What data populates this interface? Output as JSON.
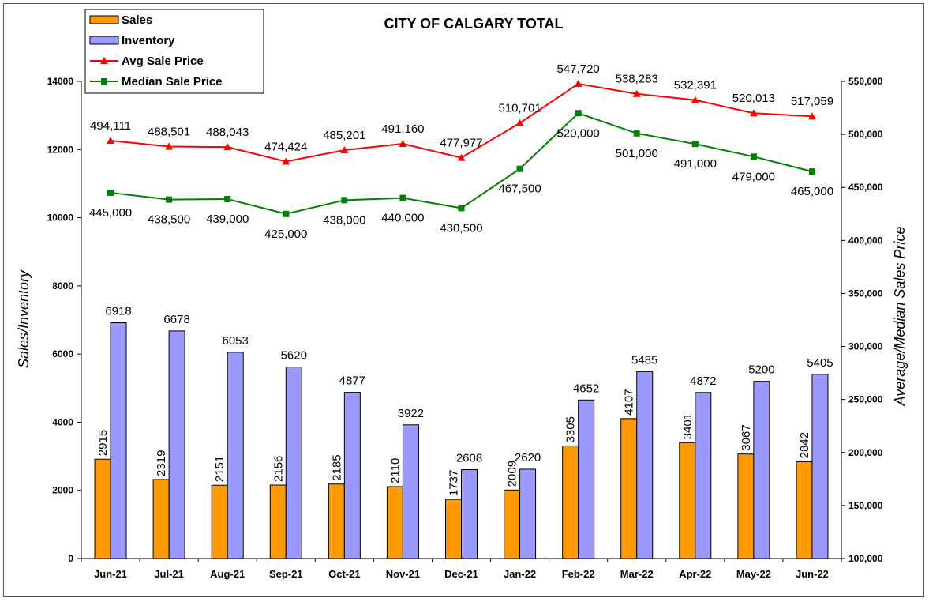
{
  "chart_data": {
    "type": "bar",
    "title": "CITY OF CALGARY TOTAL",
    "ylabel_left": "Sales/Inventory",
    "ylabel_right": "Average/Median Sales Price",
    "ylim_left": [
      0,
      14000
    ],
    "yticks_left": [
      "0",
      "2000",
      "4000",
      "6000",
      "8000",
      "10000",
      "12000",
      "14000"
    ],
    "ylim_right": [
      100000,
      550000
    ],
    "yticks_right": [
      "100,000",
      "150,000",
      "200,000",
      "250,000",
      "300,000",
      "350,000",
      "400,000",
      "450,000",
      "500,000",
      "550,000"
    ],
    "legend_position": "top-left",
    "grid": false,
    "categories": [
      "Jun-21",
      "Jul-21",
      "Aug-21",
      "Sep-21",
      "Oct-21",
      "Nov-21",
      "Dec-21",
      "Jan-22",
      "Feb-22",
      "Mar-22",
      "Apr-22",
      "May-22",
      "Jun-22"
    ],
    "series": [
      {
        "name": "Sales",
        "kind": "bar",
        "axis": "left",
        "color": "#FF9900",
        "values": [
          2915,
          2319,
          2151,
          2156,
          2185,
          2110,
          1737,
          2009,
          3305,
          4107,
          3401,
          3067,
          2842
        ],
        "labels": [
          "2915",
          "2319",
          "2151",
          "2156",
          "2185",
          "2110",
          "1737",
          "2009",
          "3305",
          "4107",
          "3401",
          "3067",
          "2842"
        ]
      },
      {
        "name": "Inventory",
        "kind": "bar",
        "axis": "left",
        "color": "#9999FF",
        "values": [
          6918,
          6678,
          6053,
          5620,
          4877,
          3922,
          2608,
          2620,
          4652,
          5485,
          4872,
          5200,
          5405
        ],
        "labels": [
          "6918",
          "6678",
          "6053",
          "5620",
          "4877",
          "3922",
          "2608",
          "2620",
          "4652",
          "5485",
          "4872",
          "5200",
          "5405"
        ]
      },
      {
        "name": "Avg Sale Price",
        "kind": "line",
        "axis": "right",
        "color": "#FF0000",
        "marker": "triangle",
        "values": [
          494111,
          488501,
          488043,
          474424,
          485201,
          491160,
          477977,
          510701,
          547720,
          538283,
          532391,
          520013,
          517059
        ],
        "labels": [
          "494,111",
          "488,501",
          "488,043",
          "474,424",
          "485,201",
          "491,160",
          "477,977",
          "510,701",
          "547,720",
          "538,283",
          "532,391",
          "520,013",
          "517,059"
        ]
      },
      {
        "name": "Median Sale Price",
        "kind": "line",
        "axis": "right",
        "color": "#008000",
        "marker": "square",
        "values": [
          445000,
          438500,
          439000,
          425000,
          438000,
          440000,
          430500,
          467500,
          520000,
          501000,
          491000,
          479000,
          465000
        ],
        "labels": [
          "445,000",
          "438,500",
          "439,000",
          "425,000",
          "438,000",
          "440,000",
          "430,500",
          "467,500",
          "520,000",
          "501,000",
          "491,000",
          "479,000",
          "465,000"
        ]
      }
    ]
  }
}
